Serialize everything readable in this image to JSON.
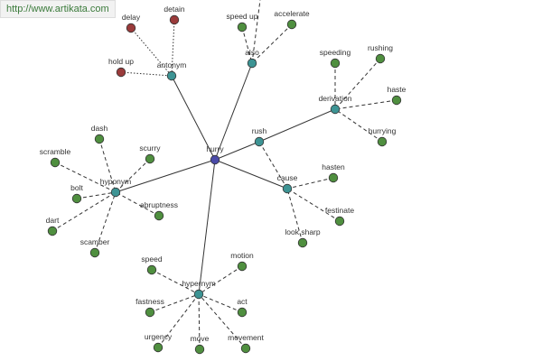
{
  "watermark": "http://www.artikata.com",
  "nodes": [
    {
      "label": "hurry"
    },
    {
      "label": "antonym"
    },
    {
      "label": "also"
    },
    {
      "label": "derivation"
    },
    {
      "label": "rush"
    },
    {
      "label": "cause"
    },
    {
      "label": "hyponym"
    },
    {
      "label": "hypernym"
    },
    {
      "label": "delay"
    },
    {
      "label": "detain"
    },
    {
      "label": "hold up"
    },
    {
      "label": "speed up"
    },
    {
      "label": "accelerate"
    },
    {
      "label": "speeding"
    },
    {
      "label": "rushing"
    },
    {
      "label": "haste"
    },
    {
      "label": "hurrying"
    },
    {
      "label": "hasten"
    },
    {
      "label": "festinate"
    },
    {
      "label": "look sharp"
    },
    {
      "label": "dash"
    },
    {
      "label": "scurry"
    },
    {
      "label": "scramble"
    },
    {
      "label": "bolt"
    },
    {
      "label": "dart"
    },
    {
      "label": "scamber"
    },
    {
      "label": "abruptness"
    },
    {
      "label": "speed"
    },
    {
      "label": "motion"
    },
    {
      "label": "fastness"
    },
    {
      "label": "act"
    },
    {
      "label": "urgency"
    },
    {
      "label": "move"
    },
    {
      "label": "movement"
    }
  ]
}
